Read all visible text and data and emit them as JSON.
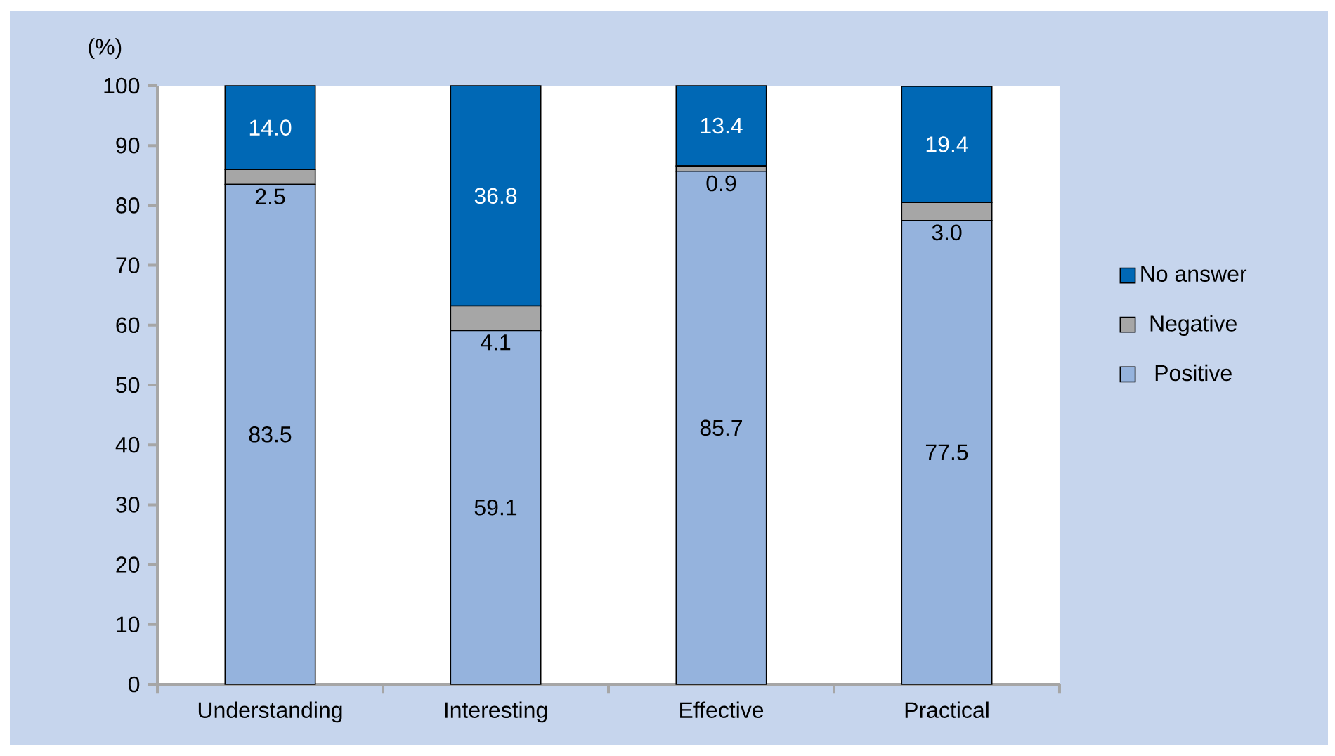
{
  "chart_data": {
    "type": "bar",
    "stacked": true,
    "ylabel": "(%)",
    "categories": [
      "Understanding",
      "Interesting",
      "Effective",
      "Practical"
    ],
    "series": [
      {
        "name": "Positive",
        "color": "#95b3dd",
        "values": [
          83.5,
          59.1,
          85.7,
          77.5
        ],
        "value_labels": [
          "83.5",
          "59.1",
          "85.7",
          "77.5"
        ]
      },
      {
        "name": "Negative",
        "color": "#a6a6a6",
        "values": [
          2.5,
          4.1,
          0.9,
          3.0
        ],
        "value_labels": [
          "2.5",
          "4.1",
          "0.9",
          "3.0"
        ]
      },
      {
        "name": "No answer",
        "color": "#0068b5",
        "values": [
          14.0,
          36.8,
          13.4,
          19.4
        ],
        "value_labels": [
          "14.0",
          "36.8",
          "13.4",
          "19.4"
        ]
      }
    ],
    "ylim": [
      0,
      100
    ],
    "yticks": [
      0,
      10,
      20,
      30,
      40,
      50,
      60,
      70,
      80,
      90,
      100
    ],
    "legend": "right",
    "grid": false
  }
}
